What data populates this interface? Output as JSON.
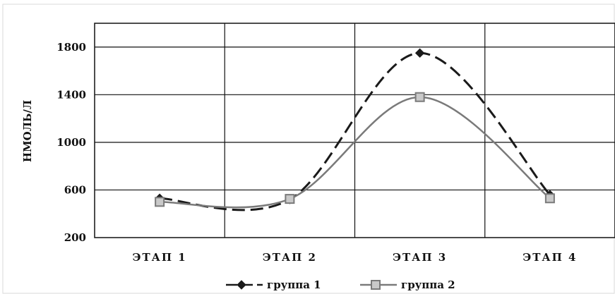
{
  "chart_data": {
    "type": "line",
    "categories": [
      "ЭТАП 1",
      "ЭТАП 2",
      "ЭТАП 3",
      "ЭТАП 4"
    ],
    "series": [
      {
        "name": "группа 1",
        "values": [
          530,
          520,
          1750,
          560
        ],
        "color": "#1a1a1a",
        "dash": "dashed",
        "marker": "diamond"
      },
      {
        "name": "группа 2",
        "values": [
          500,
          525,
          1380,
          530
        ],
        "color": "#7a7a7a",
        "dash": "solid",
        "marker": "square"
      }
    ],
    "ylabel": "НМОЛЬ/Л",
    "xlabel": "",
    "ylim": [
      200,
      2000
    ],
    "yticks": [
      "200",
      "600",
      "1000",
      "1400",
      "1800"
    ],
    "grid": true,
    "legend_position": "bottom"
  }
}
